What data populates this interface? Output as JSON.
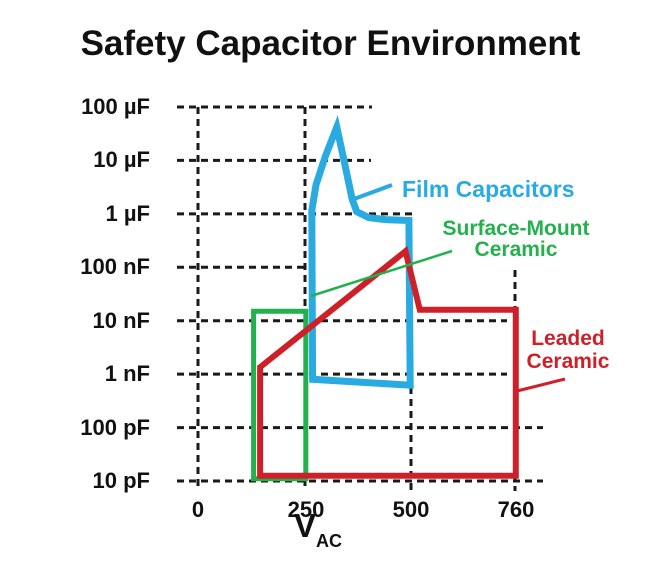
{
  "chart_data": {
    "type": "area",
    "title": "Safety Capacitor Environment",
    "x_axis": {
      "label_main": "V",
      "label_sub": "AC",
      "scale": "linear-segmented",
      "range_VAC": [
        0,
        760
      ]
    },
    "y_axis": {
      "scale": "log",
      "range": [
        "10 pF",
        "100 µF"
      ]
    },
    "grid": "dashed",
    "x_ticks": [
      {
        "label": "0",
        "V": 0
      },
      {
        "label": "250",
        "V": 250
      },
      {
        "label": "500",
        "V": 500
      },
      {
        "label": "760",
        "V": 760
      }
    ],
    "y_ticks": [
      {
        "label": "100 µF",
        "pF": 100000000
      },
      {
        "label": "10 µF",
        "pF": 10000000
      },
      {
        "label": "1 µF",
        "pF": 1000000
      },
      {
        "label": "100 nF",
        "pF": 100000
      },
      {
        "label": "10 nF",
        "pF": 10000
      },
      {
        "label": "1 nF",
        "pF": 1000
      },
      {
        "label": "100 pF",
        "pF": 100
      },
      {
        "label": "10 pF",
        "pF": 10
      }
    ],
    "regions": [
      {
        "name": "Surface-Mount Ceramic",
        "color": "#22B14C",
        "voltage_range_VAC": [
          130,
          250
        ],
        "capacitance_range": [
          "10 pF",
          "15 nF"
        ],
        "points_V_pF": [
          [
            130,
            11
          ],
          [
            252,
            11
          ],
          [
            252,
            15000
          ],
          [
            130,
            15000
          ]
        ]
      },
      {
        "name": "Film Capacitors",
        "color": "#29ABE2",
        "voltage_range_VAC": [
          265,
          500
        ],
        "capacitance_range": [
          "0.6 nF",
          "42 µF"
        ],
        "points_V_pF": [
          [
            268,
            800
          ],
          [
            266,
            1150000
          ],
          [
            276,
            3500000
          ],
          [
            298,
            12000000
          ],
          [
            325,
            42000000
          ],
          [
            342,
            10000000
          ],
          [
            356,
            3000000
          ],
          [
            361,
            1900000
          ],
          [
            372,
            1100000
          ],
          [
            400,
            850000
          ],
          [
            440,
            780000
          ],
          [
            495,
            750000
          ],
          [
            498,
            620
          ]
        ]
      },
      {
        "name": "Leaded Ceramic",
        "color": "#CE2029",
        "voltage_range_VAC": [
          145,
          760
        ],
        "capacitance_range": [
          "10 pF",
          "200 nF"
        ],
        "points_V_pF": [
          [
            145,
            1350
          ],
          [
            487,
            200000
          ],
          [
            522,
            16000
          ],
          [
            762,
            16000
          ],
          [
            762,
            12.5
          ],
          [
            145,
            12.5
          ]
        ]
      }
    ],
    "series_labels": {
      "film": "Film Capacitors",
      "smt": [
        "Surface-Mount",
        "Ceramic"
      ],
      "leaded": [
        "Leaded",
        "Ceramic"
      ]
    }
  }
}
